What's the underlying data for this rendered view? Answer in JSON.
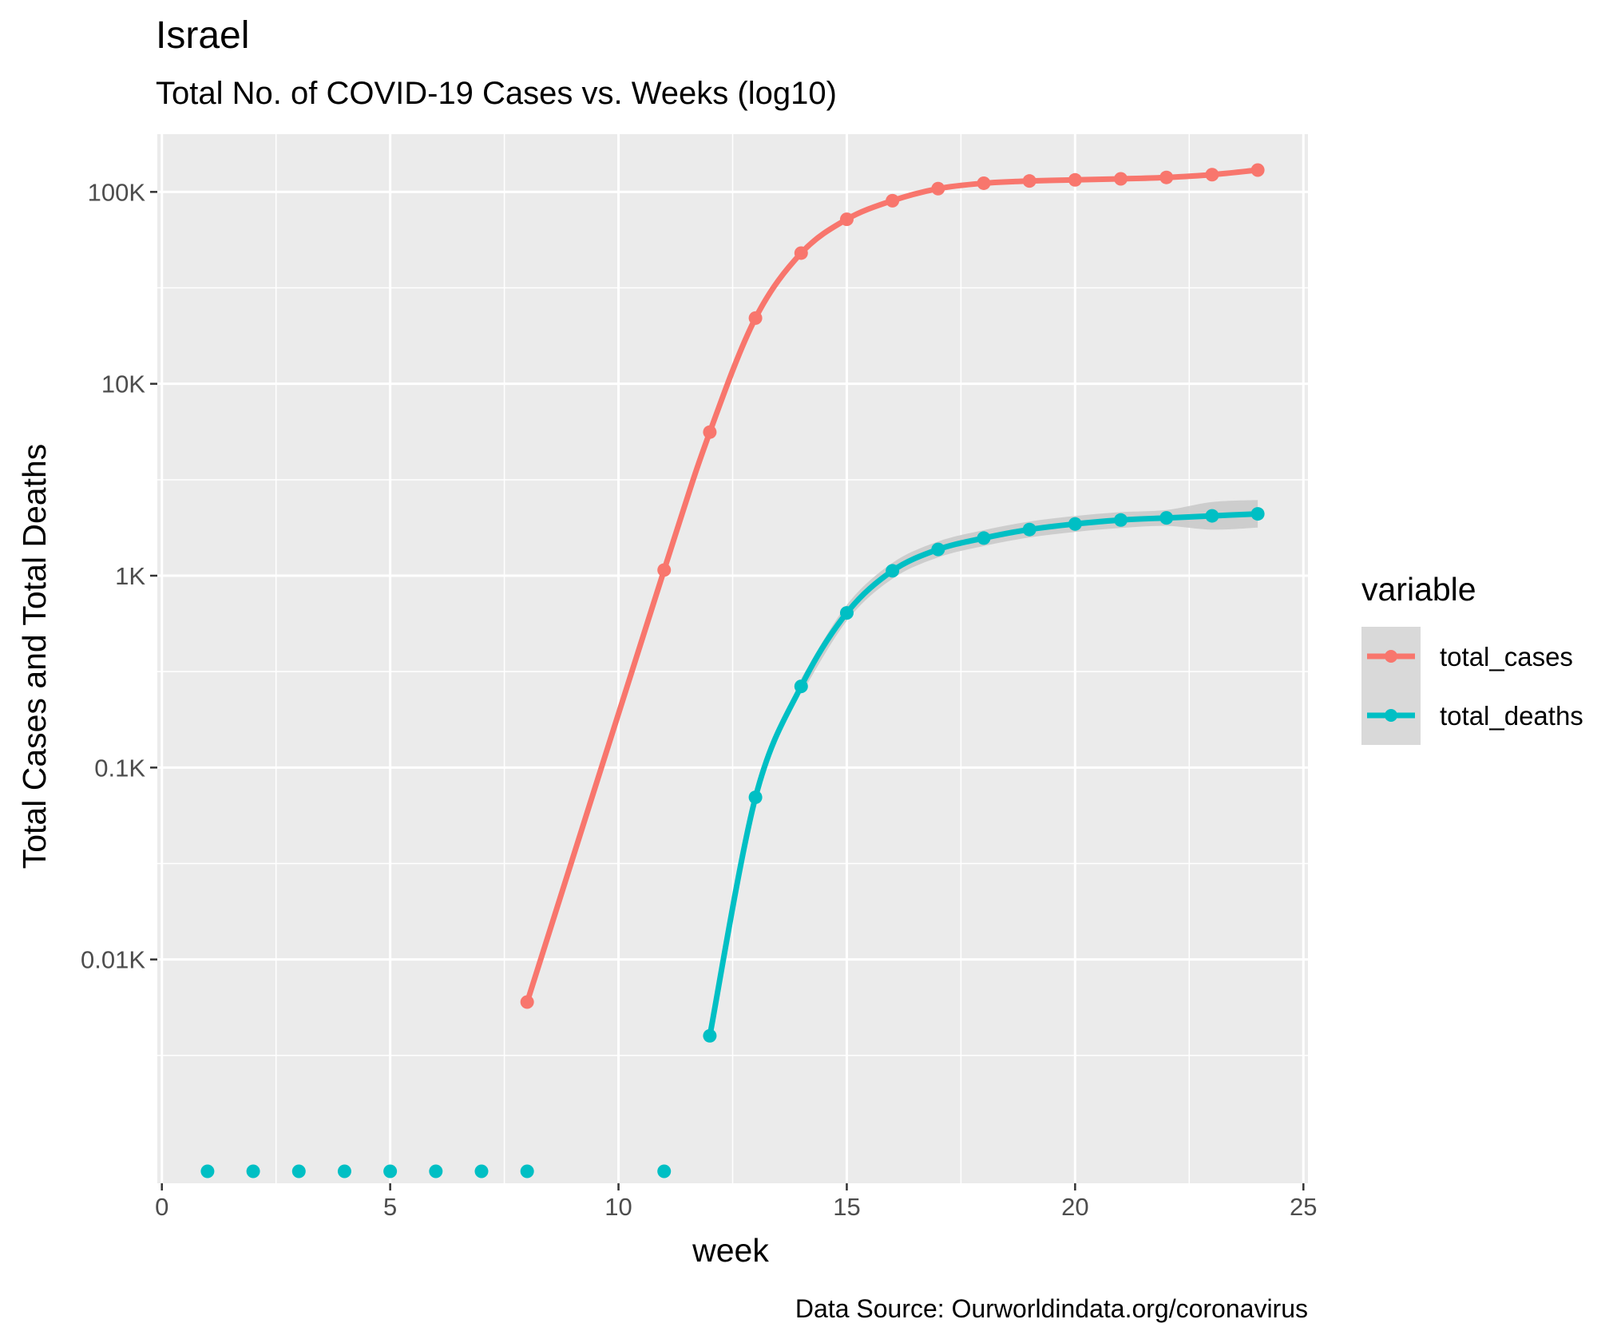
{
  "chart_data": {
    "type": "line",
    "title": "Israel",
    "subtitle": "Total No. of COVID-19 Cases vs. Weeks (log10)",
    "xlabel": "week",
    "ylabel": "Total Cases and Total Deaths",
    "caption": "Data Source: Ourworldindata.org/coronavirus",
    "x_scale": "linear",
    "y_scale": "log10",
    "xlim": [
      -0.1,
      25.1
    ],
    "ylim": [
      1,
      200000
    ],
    "x_ticks": [
      0,
      5,
      10,
      15,
      20,
      25
    ],
    "x_tick_labels": [
      "0",
      "5",
      "10",
      "15",
      "20",
      "25"
    ],
    "y_ticks": [
      10,
      100,
      1000,
      10000,
      100000
    ],
    "y_tick_labels": [
      "0.01K",
      "0.1K",
      "1K",
      "10K",
      "100K"
    ],
    "grid": true,
    "panel_background": "#ebebeb",
    "legend": {
      "title": "variable",
      "position": "right",
      "entries": [
        "total_cases",
        "total_deaths"
      ]
    },
    "series": [
      {
        "name": "total_cases",
        "color": "#F8766D",
        "x": [
          8,
          11,
          12,
          13,
          14,
          15,
          16,
          17,
          18,
          19,
          20,
          21,
          22,
          23,
          24
        ],
        "values": [
          6,
          1070,
          5600,
          22000,
          48000,
          72000,
          90000,
          104000,
          111000,
          114000,
          115500,
          117000,
          119000,
          123000,
          130000
        ]
      },
      {
        "name": "total_deaths",
        "color": "#00BFC4",
        "x": [
          1,
          2,
          3,
          4,
          5,
          6,
          7,
          8,
          11,
          12,
          13,
          14,
          15,
          16,
          17,
          18,
          19,
          20,
          21,
          22,
          23,
          24
        ],
        "values": [
          0,
          0,
          0,
          0,
          0,
          0,
          0,
          0,
          0,
          4,
          70,
          265,
          640,
          1060,
          1370,
          1570,
          1740,
          1860,
          1950,
          2000,
          2050,
          2100
        ]
      }
    ]
  }
}
